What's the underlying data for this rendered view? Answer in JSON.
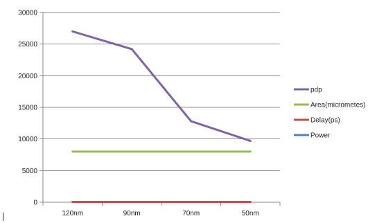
{
  "chart_data": {
    "type": "line",
    "title": "",
    "xlabel": "",
    "ylabel": "",
    "categories": [
      "120nm",
      "90nm",
      "70nm",
      "50nm"
    ],
    "ylim": [
      0,
      30000
    ],
    "y_ticks": [
      0,
      5000,
      10000,
      15000,
      20000,
      25000,
      30000
    ],
    "grid": true,
    "legend_position": "right",
    "series": [
      {
        "name": "pdp",
        "color": "#8064A2",
        "values": [
          27000,
          24200,
          12800,
          9700
        ]
      },
      {
        "name": "Area(micrometes)",
        "color": "#9BBB59",
        "values": [
          8000,
          8000,
          8000,
          8000
        ]
      },
      {
        "name": "Delay(ps)",
        "color": "#C0504D",
        "values": [
          60,
          60,
          60,
          60
        ]
      },
      {
        "name": "Power",
        "color": "#4F81BD",
        "values": [
          40,
          40,
          40,
          40
        ]
      }
    ]
  }
}
